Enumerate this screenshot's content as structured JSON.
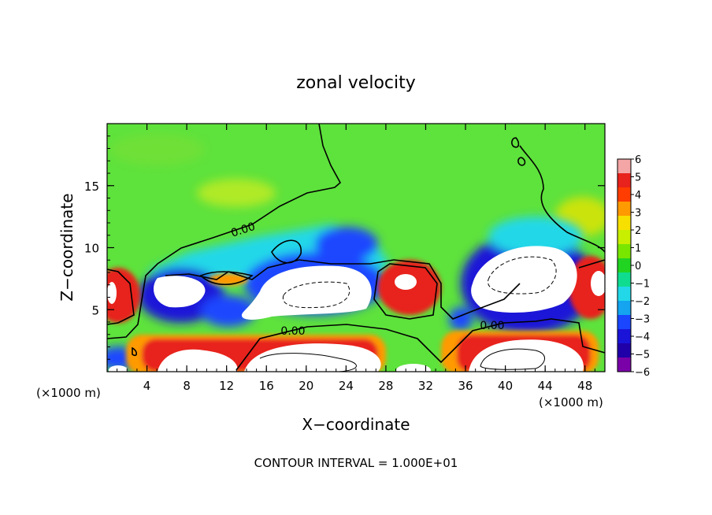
{
  "chart_data": {
    "type": "heatmap",
    "title": "zonal velocity",
    "xlabel": "X−coordinate",
    "ylabel": "Z−coordinate",
    "x_unit_left": "(×1000 m)",
    "x_unit_right": "(×1000 m)",
    "xlim": [
      0,
      50
    ],
    "ylim": [
      0,
      20
    ],
    "x_ticks": [
      "4",
      "8",
      "12",
      "16",
      "20",
      "24",
      "28",
      "32",
      "36",
      "40",
      "44",
      "48"
    ],
    "y_ticks": [
      "5",
      "10",
      "15"
    ],
    "colorbar": {
      "range": [
        -6,
        6
      ],
      "tick_labels": [
        "6",
        "5",
        "4",
        "3",
        "2",
        "1",
        "0",
        "−1",
        "−2",
        "−3",
        "−4",
        "−5",
        "−6"
      ],
      "colors": [
        "#f4a5a5",
        "#e8221c",
        "#ff3d00",
        "#ff9a00",
        "#f7e000",
        "#c8ee00",
        "#79e600",
        "#22d422",
        "#10dc90",
        "#22d8e8",
        "#14a4f0",
        "#1a46ff",
        "#1a14d8",
        "#2000a8",
        "#7a00a8"
      ]
    },
    "contour_labels": [
      "0.00",
      "0.00",
      "0.00"
    ],
    "footer": "CONTOUR INTERVAL = 1.000E+01"
  }
}
